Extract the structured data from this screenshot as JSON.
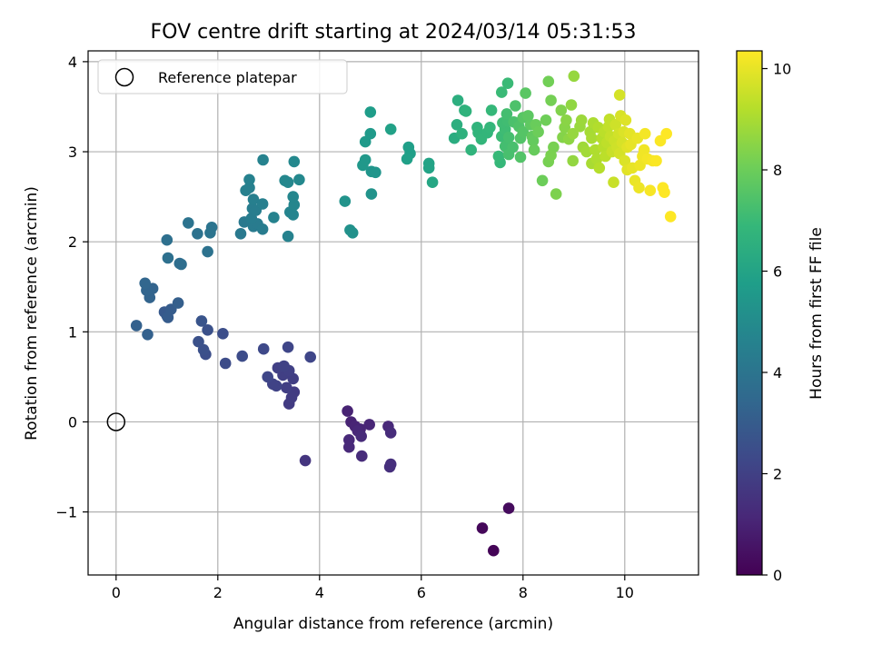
{
  "chart_data": {
    "type": "scatter",
    "title": "FOV centre drift starting at 2024/03/14 05:31:53",
    "xlabel": "Angular distance from reference (arcmin)",
    "ylabel": "Rotation from reference (arcmin)",
    "xlim": [
      -0.55,
      11.45
    ],
    "ylim": [
      -1.7,
      4.12
    ],
    "xticks": [
      0,
      2,
      4,
      6,
      8,
      10
    ],
    "yticks": [
      -1,
      0,
      1,
      2,
      3,
      4
    ],
    "grid": true,
    "legend": {
      "position": "top-left",
      "entries": [
        {
          "label": "Reference platepar",
          "marker": "open-circle"
        }
      ]
    },
    "reference_point": {
      "x": 0,
      "y": 0,
      "name": "Reference platepar"
    },
    "colorbar": {
      "label": "Hours from first FF file",
      "range": [
        0,
        10.35
      ],
      "ticks": [
        0,
        2,
        4,
        6,
        8,
        10
      ],
      "colormap": "viridis"
    },
    "colors": {
      "viridis": [
        "#440154",
        "#482878",
        "#3e4989",
        "#31688e",
        "#26828e",
        "#1f9e89",
        "#35b779",
        "#6ece58",
        "#b5de2b",
        "#fde725"
      ]
    },
    "points": [
      [
        7.42,
        -1.43,
        0.1
      ],
      [
        7.2,
        -1.18,
        0.2
      ],
      [
        7.72,
        -0.96,
        0.3
      ],
      [
        4.55,
        0.12,
        1.0
      ],
      [
        4.62,
        0.0,
        1.0
      ],
      [
        4.7,
        -0.05,
        1.05
      ],
      [
        4.8,
        -0.08,
        1.1
      ],
      [
        4.98,
        -0.03,
        1.1
      ],
      [
        4.75,
        -0.1,
        1.15
      ],
      [
        4.58,
        -0.2,
        1.2
      ],
      [
        4.58,
        -0.28,
        1.2
      ],
      [
        4.82,
        -0.16,
        1.25
      ],
      [
        4.83,
        -0.38,
        1.3
      ],
      [
        5.35,
        -0.05,
        1.2
      ],
      [
        5.4,
        -0.12,
        1.3
      ],
      [
        5.38,
        -0.5,
        1.4
      ],
      [
        5.4,
        -0.47,
        1.4
      ],
      [
        3.72,
        -0.43,
        1.6
      ],
      [
        3.5,
        0.33,
        1.8
      ],
      [
        3.4,
        0.2,
        1.8
      ],
      [
        3.45,
        0.27,
        1.85
      ],
      [
        3.48,
        0.48,
        1.9
      ],
      [
        3.35,
        0.38,
        1.9
      ],
      [
        3.28,
        0.52,
        1.95
      ],
      [
        3.4,
        0.57,
        2.0
      ],
      [
        3.18,
        0.6,
        2.0
      ],
      [
        3.3,
        0.62,
        2.05
      ],
      [
        3.15,
        0.4,
        2.1
      ],
      [
        3.08,
        0.42,
        2.1
      ],
      [
        2.98,
        0.5,
        2.2
      ],
      [
        3.38,
        0.83,
        2.2
      ],
      [
        2.9,
        0.81,
        2.3
      ],
      [
        3.82,
        0.72,
        2.2
      ],
      [
        2.48,
        0.73,
        2.4
      ],
      [
        2.15,
        0.65,
        2.4
      ],
      [
        2.1,
        0.98,
        2.5
      ],
      [
        1.76,
        0.75,
        2.5
      ],
      [
        1.72,
        0.8,
        2.55
      ],
      [
        1.62,
        0.89,
        2.6
      ],
      [
        1.8,
        1.02,
        2.6
      ],
      [
        1.68,
        1.12,
        2.7
      ],
      [
        1.0,
        1.18,
        2.9
      ],
      [
        0.95,
        1.22,
        2.9
      ],
      [
        1.08,
        1.25,
        3.0
      ],
      [
        1.02,
        1.16,
        3.0
      ],
      [
        1.22,
        1.32,
        3.1
      ],
      [
        0.62,
        0.97,
        3.2
      ],
      [
        0.4,
        1.07,
        3.2
      ],
      [
        0.66,
        1.38,
        3.3
      ],
      [
        0.72,
        1.48,
        3.3
      ],
      [
        0.6,
        1.46,
        3.35
      ],
      [
        0.57,
        1.54,
        3.4
      ],
      [
        1.28,
        1.75,
        3.7
      ],
      [
        1.25,
        1.76,
        3.7
      ],
      [
        1.02,
        1.82,
        3.8
      ],
      [
        1.0,
        2.02,
        3.8
      ],
      [
        1.8,
        1.89,
        3.9
      ],
      [
        1.6,
        2.09,
        3.9
      ],
      [
        1.42,
        2.21,
        3.95
      ],
      [
        1.85,
        2.1,
        4.0
      ],
      [
        1.88,
        2.16,
        4.0
      ],
      [
        2.45,
        2.09,
        4.2
      ],
      [
        2.52,
        2.22,
        4.2
      ],
      [
        2.7,
        2.17,
        4.3
      ],
      [
        2.78,
        2.2,
        4.3
      ],
      [
        2.88,
        2.14,
        4.35
      ],
      [
        2.66,
        2.26,
        4.35
      ],
      [
        2.68,
        2.37,
        4.4
      ],
      [
        2.75,
        2.35,
        4.4
      ],
      [
        2.7,
        2.47,
        4.45
      ],
      [
        2.88,
        2.42,
        4.45
      ],
      [
        2.55,
        2.57,
        4.5
      ],
      [
        2.62,
        2.6,
        4.5
      ],
      [
        2.62,
        2.69,
        4.55
      ],
      [
        2.89,
        2.91,
        4.6
      ],
      [
        3.1,
        2.27,
        4.6
      ],
      [
        3.38,
        2.06,
        4.6
      ],
      [
        3.42,
        2.33,
        4.7
      ],
      [
        3.48,
        2.3,
        4.7
      ],
      [
        3.5,
        2.41,
        4.75
      ],
      [
        3.48,
        2.5,
        4.75
      ],
      [
        3.32,
        2.68,
        4.8
      ],
      [
        3.38,
        2.66,
        4.8
      ],
      [
        3.6,
        2.69,
        4.85
      ],
      [
        3.5,
        2.89,
        4.85
      ],
      [
        4.6,
        2.13,
        5.2
      ],
      [
        4.65,
        2.1,
        5.2
      ],
      [
        4.5,
        2.45,
        5.3
      ],
      [
        5.02,
        2.53,
        5.3
      ],
      [
        5.02,
        2.78,
        5.4
      ],
      [
        5.1,
        2.77,
        5.4
      ],
      [
        4.85,
        2.85,
        5.5
      ],
      [
        4.9,
        2.91,
        5.5
      ],
      [
        5.0,
        3.2,
        5.6
      ],
      [
        4.9,
        3.11,
        5.6
      ],
      [
        5.0,
        3.44,
        5.7
      ],
      [
        5.75,
        3.05,
        5.8
      ],
      [
        5.78,
        2.98,
        5.8
      ],
      [
        5.72,
        2.92,
        5.85
      ],
      [
        5.4,
        3.25,
        5.9
      ],
      [
        6.15,
        2.87,
        6.0
      ],
      [
        6.15,
        2.82,
        6.0
      ],
      [
        6.22,
        2.66,
        6.1
      ],
      [
        6.65,
        3.15,
        6.4
      ],
      [
        6.7,
        3.3,
        6.5
      ],
      [
        6.72,
        3.57,
        6.5
      ],
      [
        6.8,
        3.2,
        6.6
      ],
      [
        6.85,
        3.46,
        6.6
      ],
      [
        6.88,
        3.45,
        6.65
      ],
      [
        6.98,
        3.02,
        6.7
      ],
      [
        7.1,
        3.27,
        6.7
      ],
      [
        7.12,
        3.21,
        6.75
      ],
      [
        7.18,
        3.14,
        6.8
      ],
      [
        7.3,
        3.21,
        6.8
      ],
      [
        7.35,
        3.27,
        6.85
      ],
      [
        7.38,
        3.46,
        6.9
      ],
      [
        7.55,
        2.88,
        6.9
      ],
      [
        7.52,
        2.95,
        6.95
      ],
      [
        7.58,
        3.66,
        7.0
      ],
      [
        7.7,
        3.76,
        7.0
      ],
      [
        7.58,
        3.17,
        7.05
      ],
      [
        7.65,
        3.25,
        7.1
      ],
      [
        7.6,
        3.32,
        7.1
      ],
      [
        7.7,
        3.34,
        7.15
      ],
      [
        7.68,
        3.42,
        7.2
      ],
      [
        7.65,
        3.06,
        7.2
      ],
      [
        7.72,
        3.16,
        7.25
      ],
      [
        7.72,
        2.97,
        7.3
      ],
      [
        7.8,
        3.05,
        7.3
      ],
      [
        7.82,
        3.33,
        7.35
      ],
      [
        7.85,
        3.51,
        7.4
      ],
      [
        7.92,
        3.28,
        7.45
      ],
      [
        7.95,
        3.15,
        7.5
      ],
      [
        7.95,
        2.94,
        7.5
      ],
      [
        8.0,
        3.22,
        7.55
      ],
      [
        8.0,
        3.38,
        7.6
      ],
      [
        8.05,
        3.65,
        7.65
      ],
      [
        8.1,
        3.4,
        7.7
      ],
      [
        8.15,
        3.3,
        7.75
      ],
      [
        8.18,
        3.17,
        7.8
      ],
      [
        8.2,
        3.12,
        7.85
      ],
      [
        8.22,
        3.02,
        7.9
      ],
      [
        8.25,
        3.3,
        7.95
      ],
      [
        8.3,
        3.22,
        8.0
      ],
      [
        8.38,
        2.68,
        8.0
      ],
      [
        8.45,
        3.35,
        8.05
      ],
      [
        8.5,
        3.78,
        8.1
      ],
      [
        8.55,
        3.57,
        8.15
      ],
      [
        8.5,
        2.89,
        8.2
      ],
      [
        8.6,
        3.05,
        8.2
      ],
      [
        8.55,
        2.96,
        8.25
      ],
      [
        8.65,
        2.53,
        8.3
      ],
      [
        8.75,
        3.46,
        8.35
      ],
      [
        8.78,
        3.16,
        8.4
      ],
      [
        8.82,
        3.27,
        8.45
      ],
      [
        8.85,
        3.35,
        8.5
      ],
      [
        8.9,
        3.14,
        8.55
      ],
      [
        8.95,
        3.52,
        8.6
      ],
      [
        8.98,
        2.9,
        8.65
      ],
      [
        9.0,
        3.84,
        8.7
      ],
      [
        8.98,
        3.2,
        8.7
      ],
      [
        9.12,
        3.28,
        8.75
      ],
      [
        9.15,
        3.35,
        8.8
      ],
      [
        9.18,
        3.05,
        8.85
      ],
      [
        9.25,
        3.0,
        8.9
      ],
      [
        9.32,
        3.22,
        8.95
      ],
      [
        9.35,
        3.15,
        9.0
      ],
      [
        9.35,
        2.87,
        9.0
      ],
      [
        9.38,
        3.32,
        9.05
      ],
      [
        9.42,
        3.02,
        9.1
      ],
      [
        9.45,
        2.92,
        9.1
      ],
      [
        9.48,
        3.27,
        9.15
      ],
      [
        9.5,
        2.82,
        9.2
      ],
      [
        9.55,
        3.15,
        9.2
      ],
      [
        9.58,
        3.05,
        9.25
      ],
      [
        9.6,
        3.22,
        9.3
      ],
      [
        9.62,
        2.95,
        9.3
      ],
      [
        9.65,
        3.1,
        9.35
      ],
      [
        9.68,
        3.28,
        9.4
      ],
      [
        9.7,
        3.36,
        9.4
      ],
      [
        9.72,
        3.17,
        9.45
      ],
      [
        9.75,
        3.0,
        9.5
      ],
      [
        9.78,
        2.66,
        9.5
      ],
      [
        9.8,
        3.12,
        9.55
      ],
      [
        9.82,
        3.3,
        9.6
      ],
      [
        9.85,
        3.05,
        9.6
      ],
      [
        9.88,
        3.2,
        9.65
      ],
      [
        9.9,
        2.98,
        9.7
      ],
      [
        9.9,
        3.63,
        9.7
      ],
      [
        9.92,
        3.4,
        9.75
      ],
      [
        9.95,
        3.1,
        9.75
      ],
      [
        9.98,
        3.22,
        9.8
      ],
      [
        10.0,
        2.9,
        9.8
      ],
      [
        10.02,
        3.35,
        9.85
      ],
      [
        10.05,
        3.05,
        9.9
      ],
      [
        10.05,
        2.8,
        9.9
      ],
      [
        10.1,
        3.2,
        9.95
      ],
      [
        10.12,
        3.08,
        10.0
      ],
      [
        10.15,
        2.82,
        10.0
      ],
      [
        10.2,
        2.68,
        10.05
      ],
      [
        10.25,
        3.15,
        10.05
      ],
      [
        10.28,
        2.6,
        10.1
      ],
      [
        10.3,
        2.85,
        10.1
      ],
      [
        10.35,
        2.95,
        10.15
      ],
      [
        10.38,
        3.02,
        10.15
      ],
      [
        10.4,
        3.2,
        10.2
      ],
      [
        10.45,
        2.92,
        10.2
      ],
      [
        10.5,
        2.57,
        10.25
      ],
      [
        10.55,
        2.9,
        10.25
      ],
      [
        10.62,
        2.9,
        10.3
      ],
      [
        10.7,
        3.12,
        10.3
      ],
      [
        10.75,
        2.6,
        10.35
      ],
      [
        10.78,
        2.55,
        10.35
      ],
      [
        10.82,
        3.2,
        10.35
      ],
      [
        10.9,
        2.28,
        10.35
      ]
    ]
  }
}
